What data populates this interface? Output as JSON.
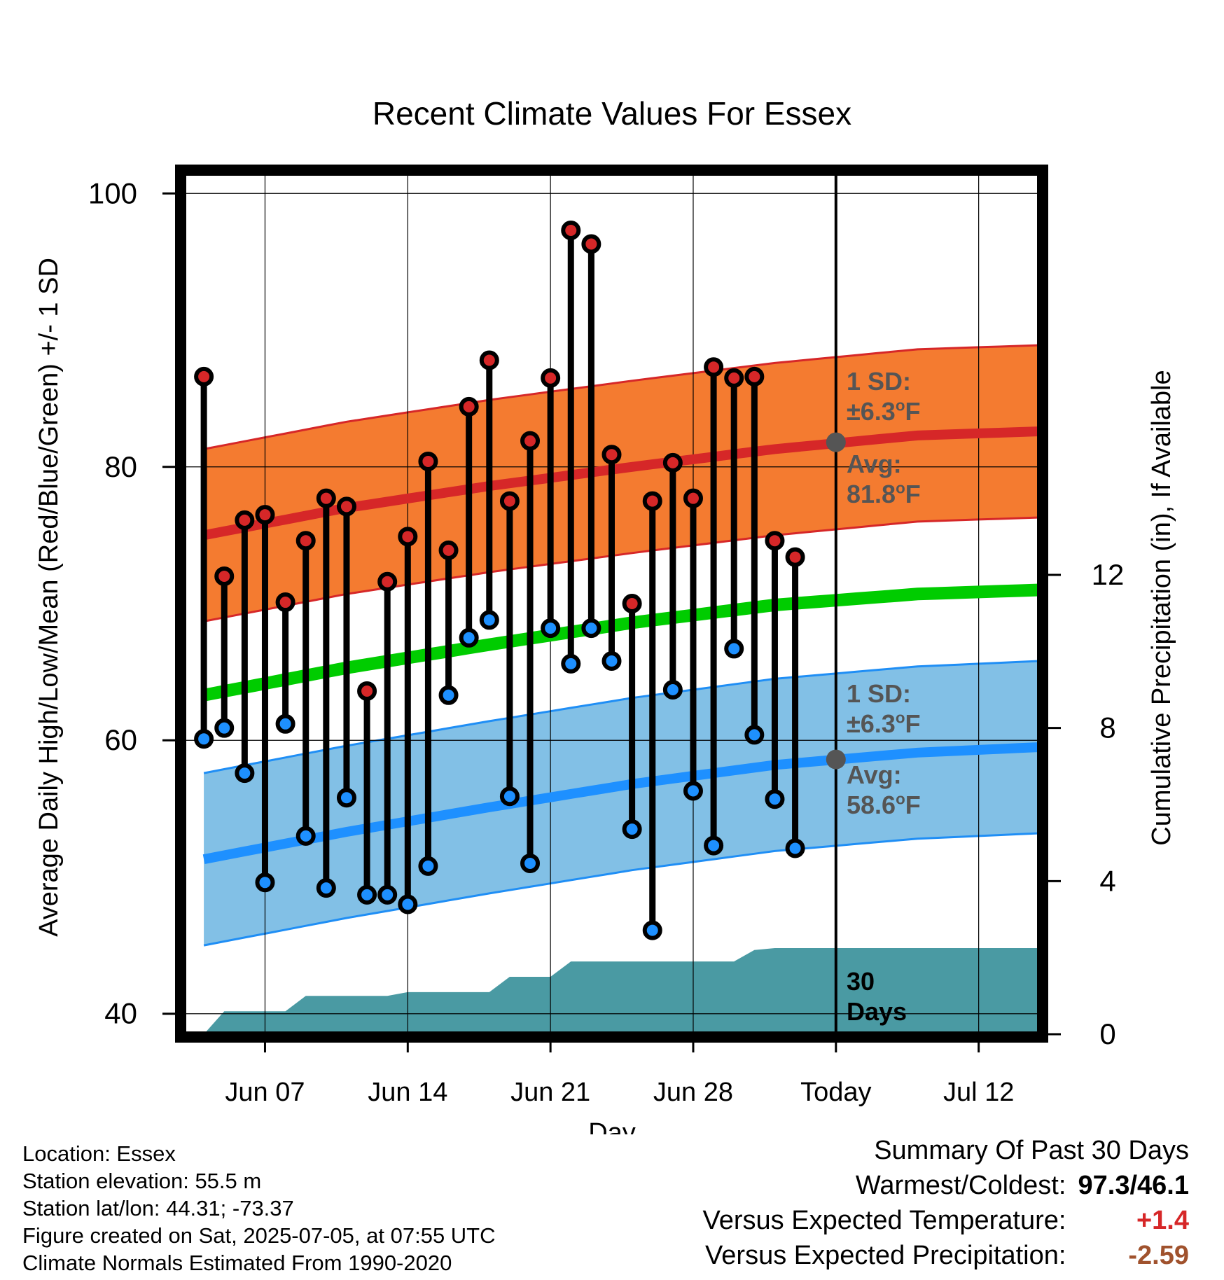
{
  "title": "Recent Climate Values For Essex",
  "colors": {
    "high_band": "#f47b30",
    "high_band_edge": "#d62728",
    "high_avg_line": "#d62728",
    "low_band": "#82c0e6",
    "low_band_edge": "#1f8ef5",
    "low_avg_line": "#1e90ff",
    "mean_line": "#00cc00",
    "precip_area": "#4a9aa3",
    "high_dot": "#d62728",
    "low_dot": "#1e90ff",
    "annotation": "#555555",
    "precip_value": "#a0522d",
    "temp_anomaly": "#d62728"
  },
  "chart_data": {
    "type": "line",
    "title": "Recent Climate Values For Essex",
    "xlabel": "Day",
    "ylabel_left": "Average Daily High/Low/Mean (Red/Blue/Green) +/- 1 SD",
    "ylabel_right": "Cumulative Precipitation (in), If Available",
    "xlim": [
      "2025-06-03",
      "2025-07-15"
    ],
    "ylim_left": [
      38.5,
      101.5
    ],
    "ylim_right": [
      0,
      22.5
    ],
    "x_ticks": [
      {
        "date": "2025-06-07",
        "label": "Jun 07"
      },
      {
        "date": "2025-06-14",
        "label": "Jun 14"
      },
      {
        "date": "2025-06-21",
        "label": "Jun 21"
      },
      {
        "date": "2025-06-28",
        "label": "Jun 28"
      },
      {
        "date": "2025-07-05",
        "label": "Today"
      },
      {
        "date": "2025-07-12",
        "label": "Jul 12"
      }
    ],
    "y_ticks_left": [
      40,
      60,
      80,
      100
    ],
    "y_ticks_right": [
      0,
      4,
      8,
      12
    ],
    "today": "2025-07-05",
    "grid": true,
    "normals": {
      "dates": [
        "2025-06-04",
        "2025-06-11",
        "2025-06-18",
        "2025-06-25",
        "2025-07-02",
        "2025-07-09",
        "2025-07-15"
      ],
      "high_avg": [
        75.0,
        77.0,
        78.6,
        80.0,
        81.3,
        82.3,
        82.6
      ],
      "low_avg": [
        51.3,
        53.3,
        55.1,
        56.8,
        58.2,
        59.1,
        59.5
      ],
      "mean_avg": [
        63.3,
        65.3,
        67.0,
        68.6,
        69.9,
        70.7,
        71.0
      ],
      "high_sd": 6.3,
      "low_sd": 6.3
    },
    "observations": {
      "dates": [
        "2025-06-04",
        "2025-06-05",
        "2025-06-06",
        "2025-06-07",
        "2025-06-08",
        "2025-06-09",
        "2025-06-10",
        "2025-06-11",
        "2025-06-12",
        "2025-06-13",
        "2025-06-14",
        "2025-06-15",
        "2025-06-16",
        "2025-06-17",
        "2025-06-18",
        "2025-06-19",
        "2025-06-20",
        "2025-06-21",
        "2025-06-22",
        "2025-06-23",
        "2025-06-24",
        "2025-06-25",
        "2025-06-26",
        "2025-06-27",
        "2025-06-28",
        "2025-06-29",
        "2025-06-30",
        "2025-07-01",
        "2025-07-02",
        "2025-07-03",
        "2025-07-04"
      ],
      "high": [
        86.6,
        72.0,
        76.1,
        76.5,
        70.1,
        74.6,
        77.7,
        77.1,
        63.6,
        71.6,
        74.9,
        80.4,
        73.9,
        84.4,
        87.8,
        77.5,
        81.9,
        86.5,
        97.3,
        96.3,
        80.9,
        70.0,
        77.5,
        80.3,
        77.7,
        87.3,
        86.5,
        86.6,
        74.6,
        73.4,
        null
      ],
      "low": [
        60.1,
        60.9,
        57.6,
        49.6,
        61.2,
        53.0,
        49.2,
        55.8,
        48.7,
        48.7,
        48.0,
        50.8,
        63.3,
        67.5,
        68.8,
        55.9,
        51.0,
        68.2,
        65.6,
        68.2,
        65.8,
        53.5,
        46.1,
        63.7,
        56.3,
        52.3,
        66.7,
        60.4,
        55.7,
        52.1,
        null
      ]
    },
    "precip_cumulative": {
      "dates": [
        "2025-06-04",
        "2025-06-05",
        "2025-06-08",
        "2025-06-09",
        "2025-06-13",
        "2025-06-14",
        "2025-06-18",
        "2025-06-19",
        "2025-06-21",
        "2025-06-22",
        "2025-06-30",
        "2025-07-01",
        "2025-07-02",
        "2025-07-15"
      ],
      "values": [
        0,
        0.6,
        0.6,
        1.0,
        1.0,
        1.1,
        1.1,
        1.5,
        1.5,
        1.9,
        1.9,
        2.2,
        2.25,
        2.25
      ]
    },
    "annotations": {
      "high_sd_label": "1 SD:",
      "high_sd_value": "±6.3",
      "high_avg_label": "Avg:",
      "high_avg_value": "81.8",
      "low_sd_label": "1 SD:",
      "low_sd_value": "±6.3",
      "low_avg_label": "Avg:",
      "low_avg_value": "58.6",
      "high_avg_today": 81.8,
      "low_avg_today": 58.6,
      "degree_unit": "o",
      "unit_letter": "F",
      "days_count": "30",
      "days_label": "Days"
    }
  },
  "footer": {
    "location": "Location: Essex",
    "elevation": "Station elevation: 55.5 m",
    "latlon": "Station lat/lon: 44.31; -73.37",
    "created": "Figure created on Sat, 2025-07-05, at 07:55 UTC",
    "normals": "Climate Normals Estimated From 1990-2020"
  },
  "summary": {
    "heading": "Summary Of Past 30 Days",
    "warm_cold_label": "Warmest/Coldest:",
    "warm_cold_value": "97.3/46.1",
    "temp_label": "Versus Expected Temperature:",
    "temp_value": "+1.4",
    "precip_label": "Versus Expected Precipitation:",
    "precip_value": "-2.59"
  }
}
